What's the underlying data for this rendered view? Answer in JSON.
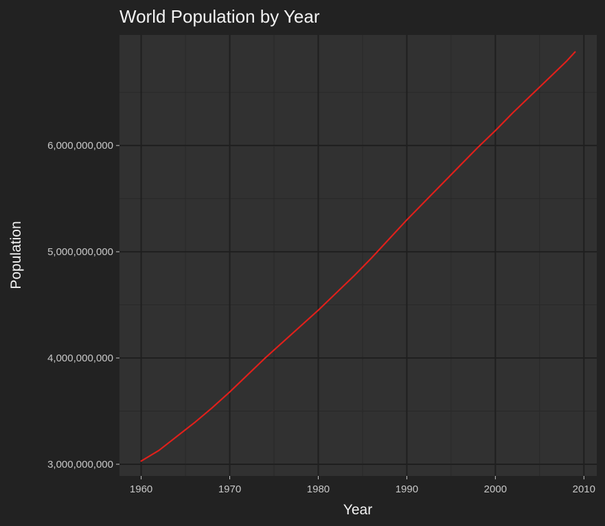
{
  "chart_data": {
    "type": "line",
    "title": "World Population by Year",
    "xlabel": "Year",
    "ylabel": "Population",
    "xlim": [
      1957.55,
      2011.45
    ],
    "ylim": [
      2890000000,
      7040000000
    ],
    "x_ticks": [
      1960,
      1970,
      1980,
      1990,
      2000,
      2010
    ],
    "x_tick_labels": [
      "1960",
      "1970",
      "1980",
      "1990",
      "2000",
      "2010"
    ],
    "y_ticks": [
      3000000000,
      4000000000,
      5000000000,
      6000000000
    ],
    "y_tick_labels": [
      "3,000,000,000",
      "4,000,000,000",
      "5,000,000,000",
      "6,000,000,000"
    ],
    "grid": true,
    "colors": {
      "background": "#222222",
      "panel": "#313131",
      "grid_major": "#1f1f1f",
      "grid_minor": "#282828",
      "line": "#e0201b"
    },
    "series": [
      {
        "x": [
          1960,
          1962,
          1964,
          1966,
          1968,
          1970,
          1972,
          1974,
          1976,
          1978,
          1980,
          1982,
          1984,
          1986,
          1988,
          1990,
          1992,
          1994,
          1996,
          1998,
          2000,
          2002,
          2004,
          2006,
          2008,
          2009
        ],
        "values": [
          3030000000,
          3130000000,
          3260000000,
          3390000000,
          3530000000,
          3680000000,
          3840000000,
          4000000000,
          4150000000,
          4300000000,
          4450000000,
          4610000000,
          4770000000,
          4940000000,
          5120000000,
          5300000000,
          5470000000,
          5640000000,
          5810000000,
          5980000000,
          6140000000,
          6310000000,
          6470000000,
          6630000000,
          6790000000,
          6880000000
        ]
      }
    ]
  }
}
